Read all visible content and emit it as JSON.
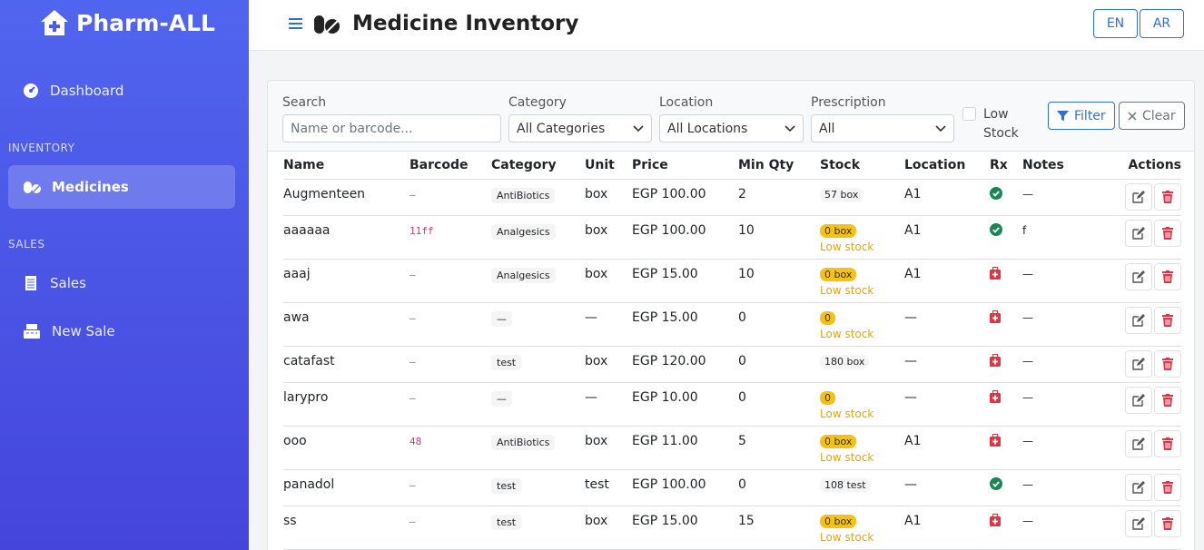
{
  "sidebar": {
    "brand": "Pharm-ALL",
    "dashboard": "Dashboard",
    "inventory_heading": "INVENTORY",
    "medicines": "Medicines",
    "sales_heading": "SALES",
    "sales": "Sales",
    "new_sale": "New Sale"
  },
  "header": {
    "title": "Medicine Inventory",
    "languages": [
      "EN",
      "AR"
    ]
  },
  "filters": {
    "search_label": "Search",
    "search_placeholder": "Name or barcode...",
    "category_label": "Category",
    "category_value": "All Categories",
    "location_label": "Location",
    "location_value": "All Locations",
    "prescription_label": "Prescription",
    "prescription_value": "All",
    "low_stock_label": "Low Stock",
    "filter_button": "Filter",
    "clear_button": "Clear"
  },
  "table": {
    "columns": [
      "Name",
      "Barcode",
      "Category",
      "Unit",
      "Price",
      "Min Qty",
      "Stock",
      "Location",
      "Rx",
      "Notes",
      "Actions"
    ],
    "rows": [
      {
        "name": "Augmenteen",
        "barcode": "–",
        "category": "AntiBiotics",
        "unit": "box",
        "price": "EGP 100.00",
        "min_qty": 2,
        "stock": "57 box",
        "location": "A1",
        "rx": true,
        "notes": "—"
      },
      {
        "name": "aaaaaa",
        "barcode": "11ff",
        "category": "Analgesics",
        "unit": "box",
        "price": "EGP 100.00",
        "min_qty": 10,
        "stock": "0 box",
        "stock_note": "Low stock",
        "location": "A1",
        "rx": true,
        "notes": "f"
      },
      {
        "name": "aaaj",
        "barcode": "–",
        "category": "Analgesics",
        "unit": "box",
        "price": "EGP 15.00",
        "min_qty": 10,
        "stock": "0 box",
        "stock_note": "Low stock",
        "location": "A1",
        "rx": false,
        "notes": "—"
      },
      {
        "name": "awa",
        "barcode": "–",
        "category": "—",
        "unit": "—",
        "price": "EGP 15.00",
        "min_qty": 0,
        "stock": "0",
        "stock_note": "Low stock",
        "location": "—",
        "rx": false,
        "notes": "—"
      },
      {
        "name": "catafast",
        "barcode": "–",
        "category": "test",
        "unit": "box",
        "price": "EGP 120.00",
        "min_qty": 0,
        "stock": "180 box",
        "location": "—",
        "rx": false,
        "notes": "—"
      },
      {
        "name": "larypro",
        "barcode": "–",
        "category": "—",
        "unit": "—",
        "price": "EGP 10.00",
        "min_qty": 0,
        "stock": "0",
        "stock_note": "Low stock",
        "location": "—",
        "rx": false,
        "notes": "—"
      },
      {
        "name": "ooo",
        "barcode": "48",
        "category": "AntiBiotics",
        "unit": "box",
        "price": "EGP 11.00",
        "min_qty": 5,
        "stock": "0 box",
        "stock_note": "Low stock",
        "location": "A1",
        "rx": false,
        "notes": "—"
      },
      {
        "name": "panadol",
        "barcode": "–",
        "category": "test",
        "unit": "test",
        "price": "EGP 100.00",
        "min_qty": 0,
        "stock": "108 test",
        "location": "—",
        "rx": true,
        "notes": "—"
      },
      {
        "name": "ss",
        "barcode": "–",
        "category": "test",
        "unit": "box",
        "price": "EGP 15.00",
        "min_qty": 15,
        "stock": "0 box",
        "stock_note": "Low stock",
        "location": "A1",
        "rx": false,
        "notes": "—"
      }
    ]
  }
}
